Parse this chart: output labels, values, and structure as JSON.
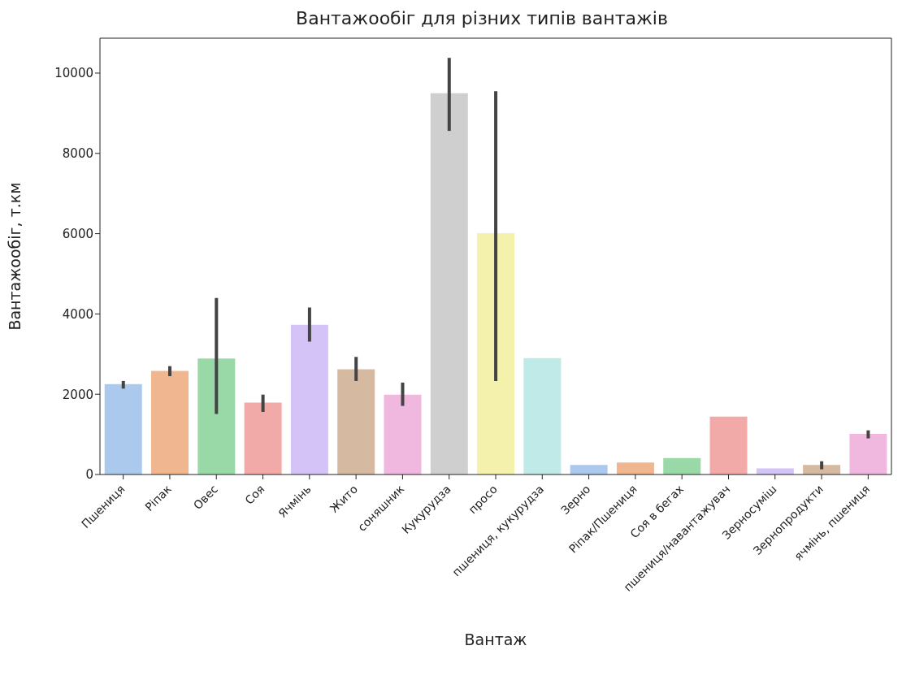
{
  "chart_data": {
    "type": "bar",
    "title": "Вантажообіг для різних типів вантажів",
    "xlabel": "Вантаж",
    "ylabel": "Вантажообіг, т.км",
    "categories": [
      "Пшениця",
      "Ріпак",
      "Овес",
      "Соя",
      "Ячмінь",
      "Жито",
      "соняшник",
      "Кукурудза",
      "просо",
      "пшениця, кукурудза",
      "Зерно",
      "Ріпак/Пшениця",
      "Соя в бегах",
      "пшениця/навантажувач",
      "Зерносуміш",
      "Зернопродукти",
      "ячмінь, пшениця"
    ],
    "values": [
      2250,
      2580,
      2890,
      1790,
      3730,
      2620,
      1990,
      9500,
      6010,
      2900,
      240,
      300,
      410,
      1440,
      150,
      240,
      1010
    ],
    "errors": [
      [
        2140,
        2330
      ],
      [
        2450,
        2700
      ],
      [
        1510,
        4400
      ],
      [
        1560,
        1990
      ],
      [
        3310,
        4160
      ],
      [
        2330,
        2930
      ],
      [
        1710,
        2290
      ],
      [
        8560,
        10380
      ],
      [
        2330,
        9550
      ],
      null,
      null,
      null,
      null,
      null,
      null,
      [
        130,
        330
      ],
      [
        900,
        1100
      ]
    ],
    "colors": [
      "#abc9ed",
      "#f0b690",
      "#98d9a7",
      "#f1aaa8",
      "#d3c3f7",
      "#d5b9a0",
      "#f0b7df",
      "#cfcfcf",
      "#f3f1ab",
      "#c0eae8",
      "#abc9ed",
      "#f0b690",
      "#98d9a7",
      "#f1aaa8",
      "#d3c3f7",
      "#d5b9a0",
      "#f0b7df"
    ],
    "ylim": [
      0,
      10870
    ],
    "yticks": [
      0,
      2000,
      4000,
      6000,
      8000,
      10000
    ]
  }
}
